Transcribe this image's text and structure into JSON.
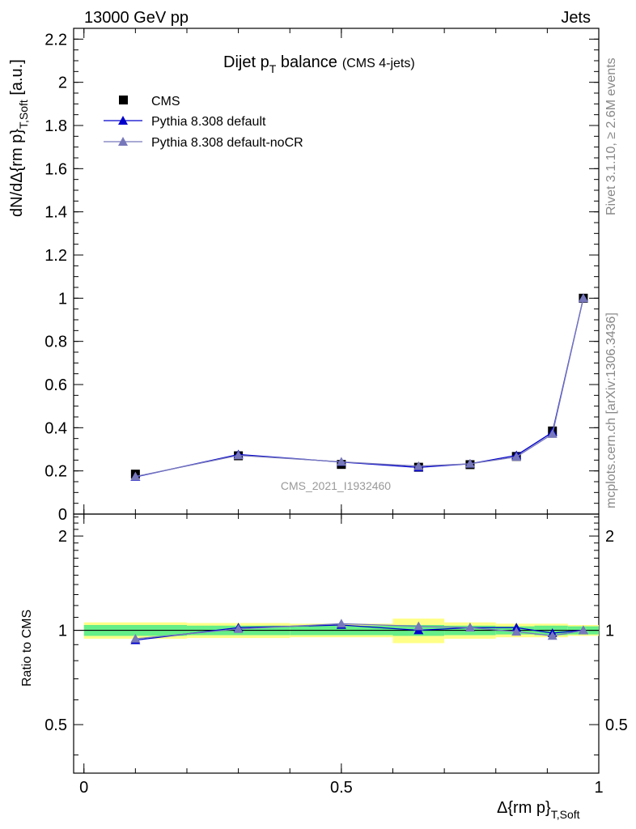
{
  "header": {
    "left_label": "13000 GeV pp",
    "right_label": "Jets"
  },
  "side_text": {
    "rivet": "Rivet 3.1.10, ≥ 2.6M events",
    "mcplots": "mcplots.cern.ch [arXiv:1306.3436]"
  },
  "watermark": "CMS_2021_I1932460",
  "chart_data": {
    "type": "line",
    "title": {
      "main": "Dijet p",
      "sub": "T",
      "rest": " balance",
      "note": "(CMS 4-jets)"
    },
    "ylabel": {
      "main": "dN/dΔ{rm p}",
      "sub": "T,Soft",
      "rest": " [a.u.]"
    },
    "xlabel": {
      "main": "Δ{rm p}",
      "sub": "T,Soft"
    },
    "ratio_ylabel": "Ratio to CMS",
    "xlim": [
      -0.02,
      1.0
    ],
    "ylim": [
      0,
      2.25
    ],
    "ratio_ylim": [
      0.35,
      2.35
    ],
    "x_ticks": [
      {
        "value": 0,
        "label": "0"
      },
      {
        "value": 0.5,
        "label": "0.5"
      },
      {
        "value": 1,
        "label": "1"
      }
    ],
    "y_ticks": [
      {
        "value": 0,
        "label": "0"
      },
      {
        "value": 0.2,
        "label": "0.2"
      },
      {
        "value": 0.4,
        "label": "0.4"
      },
      {
        "value": 0.6,
        "label": "0.6"
      },
      {
        "value": 0.8,
        "label": "0.8"
      },
      {
        "value": 1.0,
        "label": "1"
      },
      {
        "value": 1.2,
        "label": "1.2"
      },
      {
        "value": 1.4,
        "label": "1.4"
      },
      {
        "value": 1.6,
        "label": "1.6"
      },
      {
        "value": 1.8,
        "label": "1.8"
      },
      {
        "value": 2.0,
        "label": "2"
      },
      {
        "value": 2.2,
        "label": "2.2"
      }
    ],
    "ratio_y_ticks": [
      {
        "value": 0.5,
        "label": "0.5"
      },
      {
        "value": 1.0,
        "label": "1"
      },
      {
        "value": 2.0,
        "label": "2"
      }
    ],
    "bins": [
      {
        "lo": 0.0,
        "hi": 0.2
      },
      {
        "lo": 0.2,
        "hi": 0.4
      },
      {
        "lo": 0.4,
        "hi": 0.6
      },
      {
        "lo": 0.6,
        "hi": 0.7
      },
      {
        "lo": 0.7,
        "hi": 0.8
      },
      {
        "lo": 0.8,
        "hi": 0.875
      },
      {
        "lo": 0.875,
        "hi": 0.94
      },
      {
        "lo": 0.94,
        "hi": 1.0
      }
    ],
    "x": [
      0.1,
      0.3,
      0.5,
      0.65,
      0.75,
      0.84,
      0.91,
      0.97
    ],
    "series": [
      {
        "name": "CMS",
        "marker": "square",
        "color": "#000000",
        "values": [
          0.185,
          0.27,
          0.23,
          0.217,
          0.229,
          0.267,
          0.385,
          1.0
        ]
      },
      {
        "name": "Pythia 8.308 default",
        "marker": "triangle",
        "color": "#0000cc",
        "values": [
          0.172,
          0.276,
          0.241,
          0.216,
          0.233,
          0.272,
          0.379,
          1.0
        ],
        "ratio": [
          0.93,
          1.02,
          1.04,
          1.0,
          1.02,
          1.02,
          0.98,
          1.0
        ]
      },
      {
        "name": "Pythia 8.308 default-noCR",
        "marker": "triangle",
        "color": "#7777bb",
        "values": [
          0.174,
          0.272,
          0.242,
          0.222,
          0.233,
          0.265,
          0.371,
          1.0
        ],
        "ratio": [
          0.94,
          1.01,
          1.05,
          1.03,
          1.02,
          0.99,
          0.96,
          1.0
        ]
      }
    ],
    "uncertainty_bands": {
      "inner_color": "#66ee88",
      "outer_color": "#ffff88",
      "inner": [
        0.04,
        0.035,
        0.035,
        0.04,
        0.035,
        0.03,
        0.035,
        0.03
      ],
      "outer": [
        0.06,
        0.055,
        0.05,
        0.09,
        0.06,
        0.05,
        0.05,
        0.04
      ]
    },
    "legend_position": "top-left",
    "grid": false
  }
}
